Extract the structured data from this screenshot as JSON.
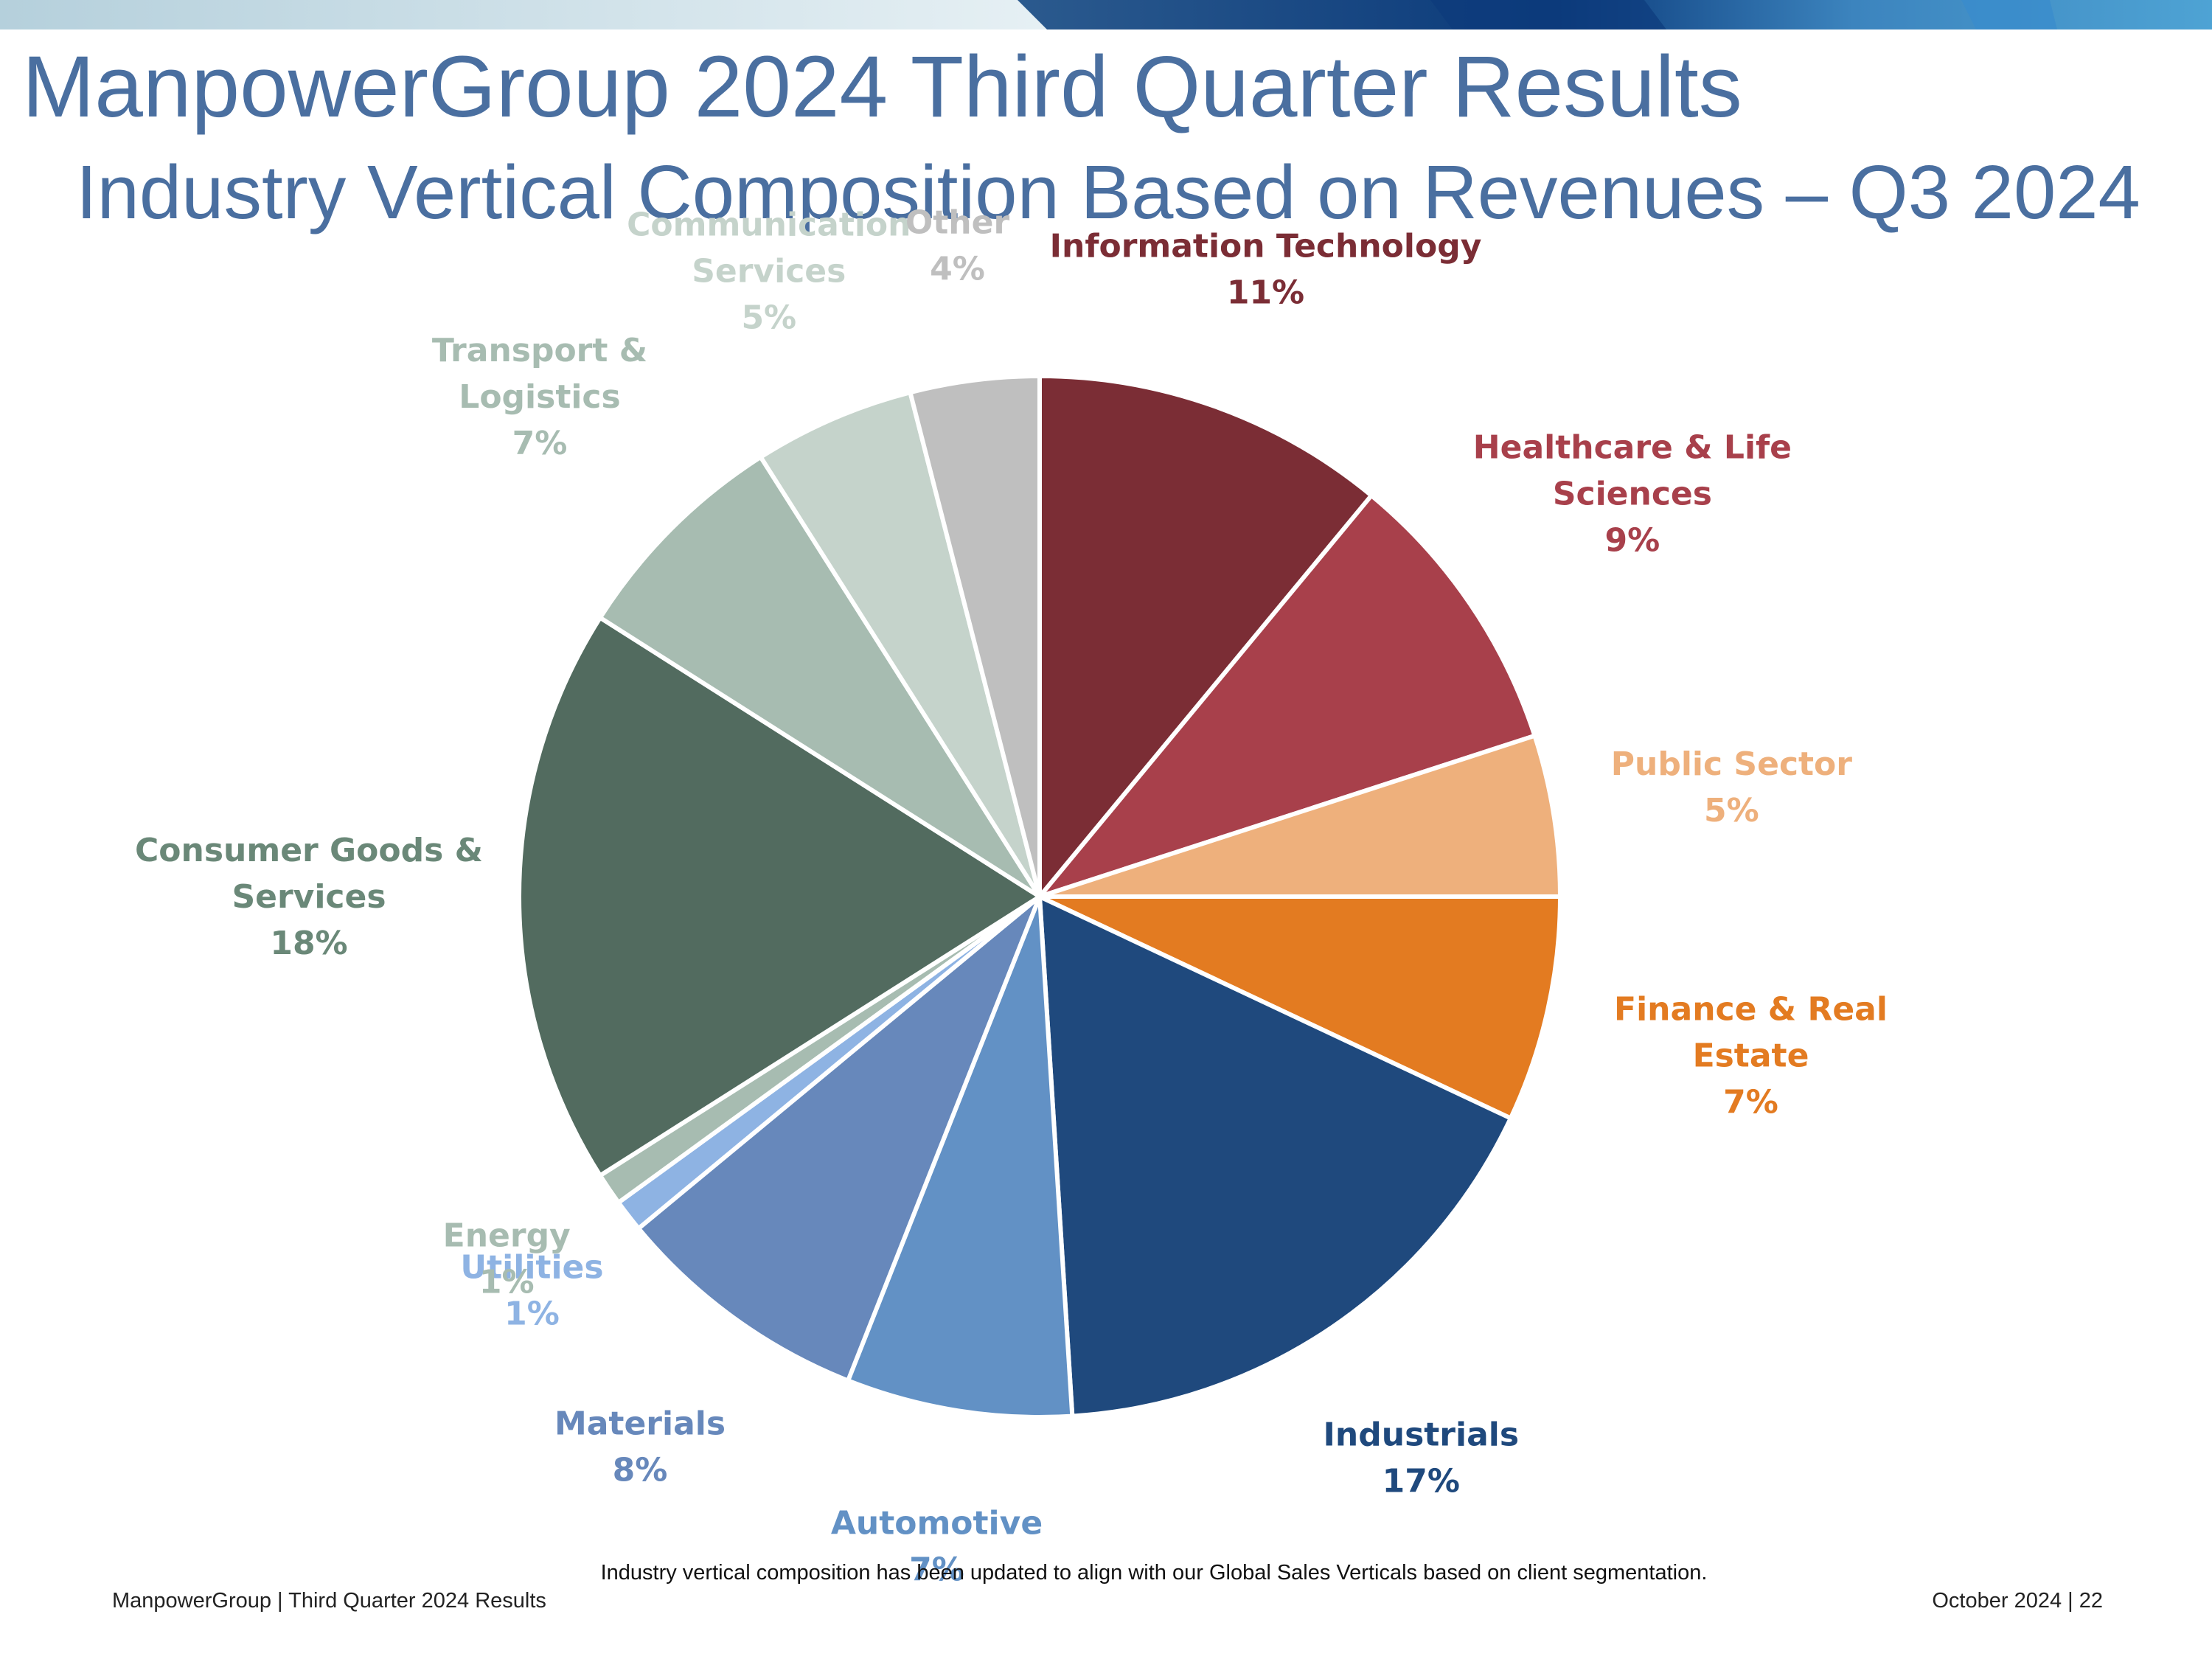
{
  "header": {
    "title": "ManpowerGroup 2024 Third Quarter Results",
    "subtitle": "Industry Vertical Composition Based on Revenues – Q3 2024"
  },
  "chart_data": {
    "type": "pie",
    "title": "Industry Vertical Composition Based on Revenues – Q3 2024",
    "unit": "%",
    "slices": [
      {
        "name": "Information Technology",
        "label_lines": [
          "Information Technology"
        ],
        "value": 11,
        "label": "11%",
        "color": "#7b2d35",
        "label_color": "#7b2d35"
      },
      {
        "name": "Healthcare & Life Sciences",
        "label_lines": [
          "Healthcare & Life",
          "Sciences"
        ],
        "value": 9,
        "label": "9%",
        "color": "#a8404b",
        "label_color": "#a8404b"
      },
      {
        "name": "Public Sector",
        "label_lines": [
          "Public Sector"
        ],
        "value": 5,
        "label": "5%",
        "color": "#eeb07c",
        "label_color": "#eeb07c"
      },
      {
        "name": "Finance & Real Estate",
        "label_lines": [
          "Finance & Real",
          "Estate"
        ],
        "value": 7,
        "label": "7%",
        "color": "#e37b21",
        "label_color": "#e37b21"
      },
      {
        "name": "Industrials",
        "label_lines": [
          "Industrials"
        ],
        "value": 17,
        "label": "17%",
        "color": "#1f497d",
        "label_color": "#1f497d"
      },
      {
        "name": "Automotive",
        "label_lines": [
          "Automotive"
        ],
        "value": 7,
        "label": "7%",
        "color": "#6291c5",
        "label_color": "#6291c5"
      },
      {
        "name": "Materials",
        "label_lines": [
          "Materials"
        ],
        "value": 8,
        "label": "8%",
        "color": "#6788bb",
        "label_color": "#6788bb"
      },
      {
        "name": "Utilities",
        "label_lines": [
          "Utilities"
        ],
        "value": 1,
        "label": "1%",
        "color": "#8eb3e3",
        "label_color": "#8eb3e3"
      },
      {
        "name": "Energy",
        "label_lines": [
          "Energy"
        ],
        "value": 1,
        "label": "1%",
        "color": "#a7bcb1",
        "label_color": "#a7bcb1"
      },
      {
        "name": "Consumer Goods & Services",
        "label_lines": [
          "Consumer Goods &",
          "Services"
        ],
        "value": 18,
        "label": "18%",
        "color": "#526b5f",
        "label_color": "#6a8878"
      },
      {
        "name": "Transport & Logistics",
        "label_lines": [
          "Transport &",
          "Logistics"
        ],
        "value": 7,
        "label": "7%",
        "color": "#a7bcb1",
        "label_color": "#a7bcb1"
      },
      {
        "name": "Communication Services",
        "label_lines": [
          "Communication",
          "Services"
        ],
        "value": 5,
        "label": "5%",
        "color": "#c5d3cb",
        "label_color": "#c5d3cb"
      },
      {
        "name": "Other",
        "label_lines": [
          "Other"
        ],
        "value": 4,
        "label": "4%",
        "color": "#bfbfbf",
        "label_color": "#bfbfbf"
      }
    ]
  },
  "footnote": "Industry vertical composition has been updated to align with our Global Sales Verticals based on client segmentation.",
  "footer": {
    "left": "ManpowerGroup  |  Third Quarter 2024 Results",
    "right": "October 2024   |   22"
  }
}
